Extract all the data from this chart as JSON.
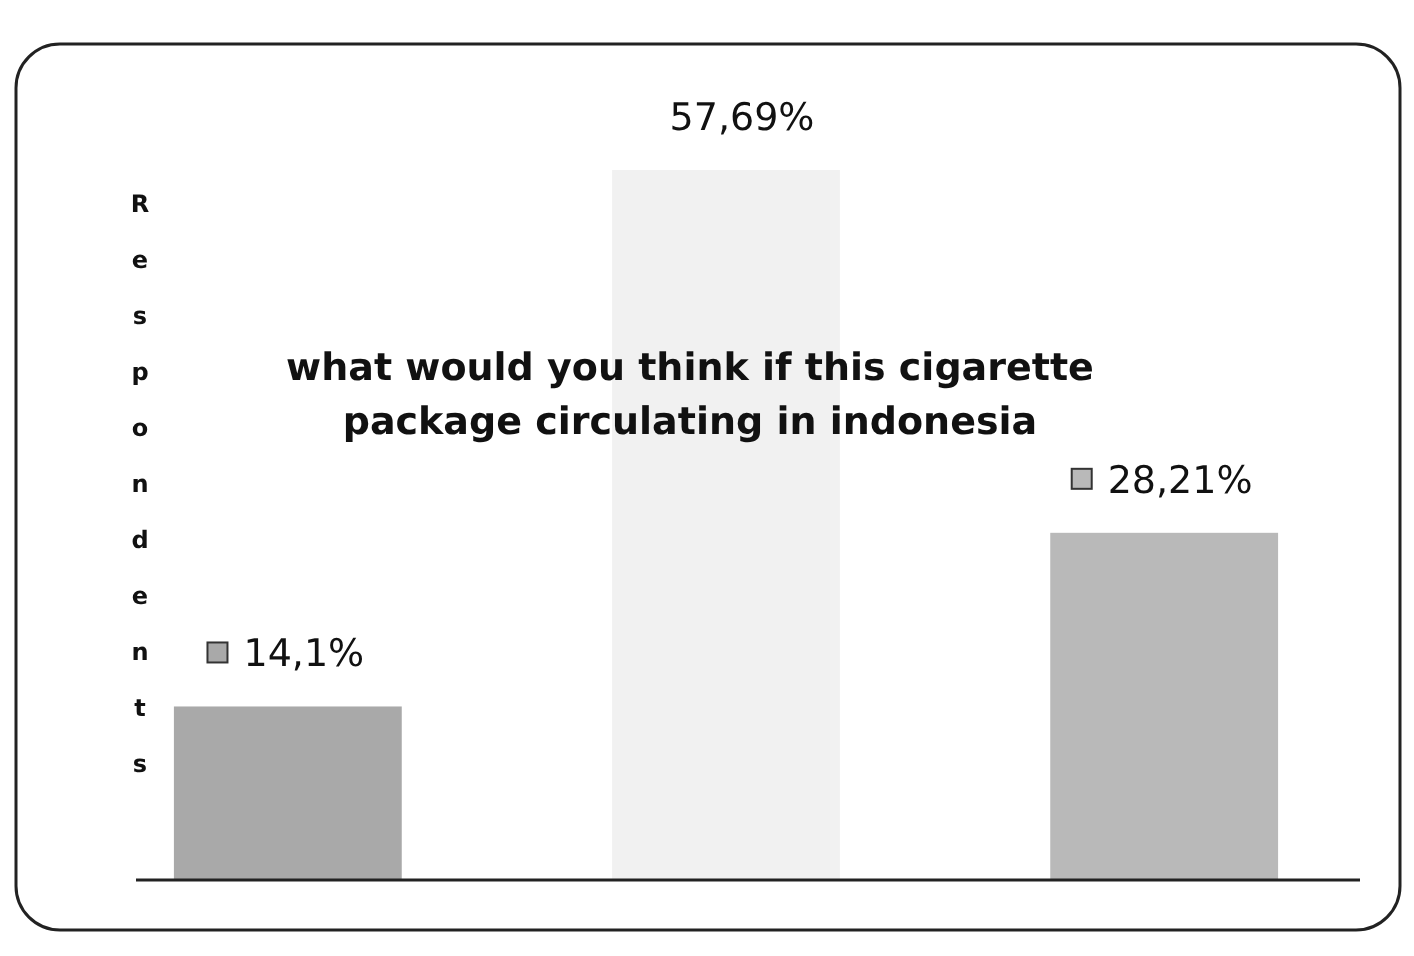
{
  "chart_data": {
    "type": "bar",
    "title": "what would you think if this cigarette package circulating in indonesia",
    "ylabel": "Respondents",
    "categories": [
      null,
      null,
      null
    ],
    "values": [
      14.1,
      57.69,
      28.21
    ],
    "colors": [
      "#a9a9a9",
      "#f1f1f1",
      "#b9b9b9"
    ],
    "value_labels": [
      "14,1%",
      "57,69%",
      "28,21%"
    ]
  }
}
